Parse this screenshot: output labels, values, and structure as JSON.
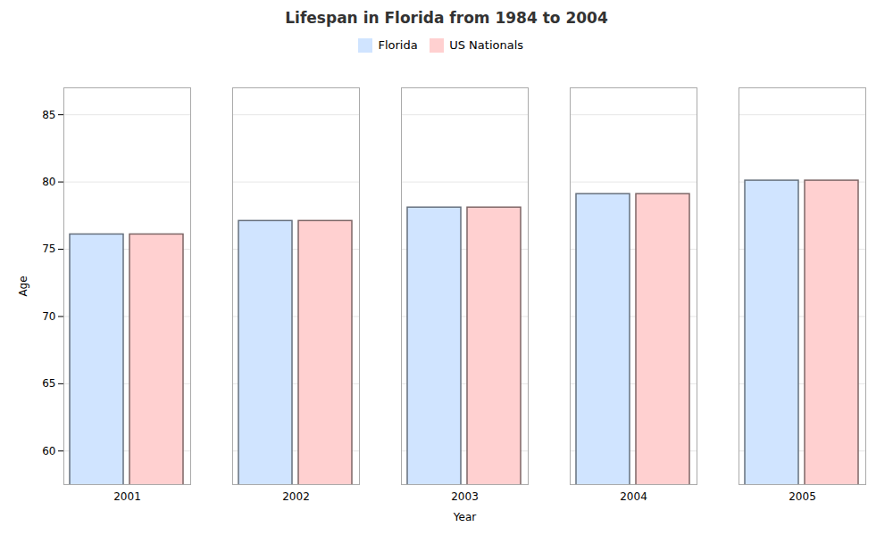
{
  "chart_data": {
    "type": "bar",
    "title": "Lifespan in Florida from 1984 to 2004",
    "xlabel": "Year",
    "ylabel": "Age",
    "categories": [
      "2001",
      "2002",
      "2003",
      "2004",
      "2005"
    ],
    "series": [
      {
        "name": "Florida",
        "color": "#d0e4ff",
        "values": [
          76.1,
          77.1,
          78.1,
          79.1,
          80.1
        ]
      },
      {
        "name": "US Nationals",
        "color": "#ffd0d0",
        "values": [
          76.1,
          77.1,
          78.1,
          79.1,
          80.1
        ]
      }
    ],
    "ylim": [
      57.5,
      87
    ],
    "yticks": [
      60,
      65,
      70,
      75,
      80,
      85
    ],
    "grid": true,
    "legend": "top"
  }
}
